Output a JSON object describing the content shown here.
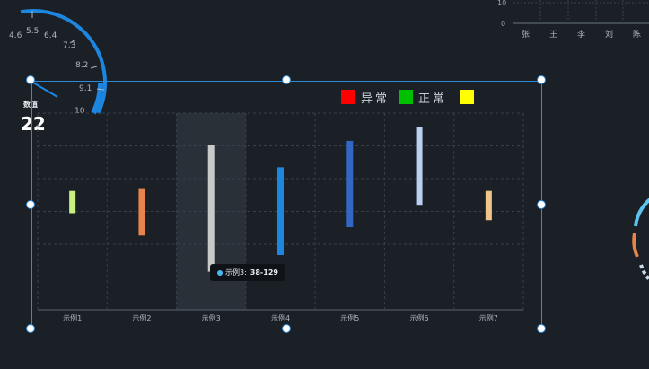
{
  "gauge": {
    "tick_labels": [
      "4.6",
      "5.5",
      "6.4",
      "7.3",
      "8.2",
      "9.1",
      "10"
    ],
    "value_label": "数值",
    "value": "22",
    "accent": "#1c86e0"
  },
  "mini_chart": {
    "y_ticks": [
      "10",
      "0"
    ],
    "categories": [
      "张",
      "王",
      "李",
      "刘",
      "陈"
    ]
  },
  "legend": [
    {
      "label": "异常",
      "color": "#ff0000"
    },
    {
      "label": "正常",
      "color": "#00c000"
    },
    {
      "label": "",
      "color": "#ffff00"
    }
  ],
  "chart_data": {
    "type": "bar",
    "categories": [
      "示例1",
      "示例2",
      "示例3",
      "示例4",
      "示例5",
      "示例6",
      "示例7"
    ],
    "ranges": [
      [
        80,
        96
      ],
      [
        64,
        98
      ],
      [
        38,
        129
      ],
      [
        50,
        113
      ],
      [
        70,
        132
      ],
      [
        86,
        142
      ],
      [
        75,
        96
      ]
    ],
    "colors": [
      "#c8f082",
      "#e8834b",
      "#c9c9c9",
      "#1c86e0",
      "#3267c6",
      "#b9d0ee",
      "#f1c48c"
    ],
    "highlighted_category": "示例3"
  },
  "tooltip": {
    "series_label": "示例3:",
    "value": "38-129"
  },
  "selection_colors": {
    "frame": "#2b8ad9"
  }
}
